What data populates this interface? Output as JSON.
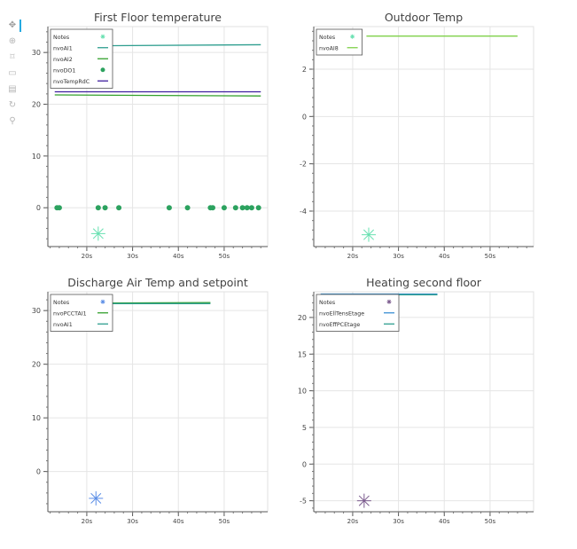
{
  "toolbar": {
    "tools": [
      {
        "name": "pan-tool-icon",
        "glyph": "✥"
      },
      {
        "name": "box-zoom-tool-icon",
        "glyph": "⊕"
      },
      {
        "name": "wheel-zoom-tool-icon",
        "glyph": "⌑"
      },
      {
        "name": "box-select-tool-icon",
        "glyph": "▭"
      },
      {
        "name": "save-tool-icon",
        "glyph": "▤"
      },
      {
        "name": "reset-tool-icon",
        "glyph": "↻"
      },
      {
        "name": "hover-tool-icon",
        "glyph": "⚲"
      }
    ]
  },
  "chart_data": [
    {
      "type": "line",
      "title": "First Floor temperature",
      "xlabel": "",
      "ylabel": "",
      "xlim": [
        11.5,
        59.5
      ],
      "ylim": [
        -7.5,
        35
      ],
      "xticks": [
        20,
        30,
        40,
        50
      ],
      "xtick_suffix": "s",
      "yticks": [
        0,
        10,
        20,
        30
      ],
      "grid": true,
      "legend_position": "top-left",
      "series": [
        {
          "name": "Notes",
          "kind": "star",
          "color": "#66e0b0",
          "points": [
            [
              22.5,
              -5
            ]
          ]
        },
        {
          "name": "nvoAI1",
          "kind": "line",
          "color": "#2e9e8f",
          "points": [
            [
              23,
              31.3
            ],
            [
              58,
              31.5
            ]
          ]
        },
        {
          "name": "nvoAI2",
          "kind": "line",
          "color": "#33a02c",
          "points": [
            [
              13,
              21.8
            ],
            [
              58,
              21.6
            ]
          ]
        },
        {
          "name": "nvoDO1",
          "kind": "scatter",
          "color": "#2ca25f",
          "points": [
            [
              13.5,
              0
            ],
            [
              14,
              0
            ],
            [
              22.5,
              0
            ],
            [
              24,
              0
            ],
            [
              27,
              0
            ],
            [
              38,
              0
            ],
            [
              42,
              0
            ],
            [
              47,
              0
            ],
            [
              47.5,
              0
            ],
            [
              50,
              0
            ],
            [
              52.5,
              0
            ],
            [
              54,
              0
            ],
            [
              55,
              0
            ],
            [
              56,
              0
            ],
            [
              57.5,
              0
            ]
          ]
        },
        {
          "name": "nvoTempRdC",
          "kind": "line",
          "color": "#3f1f9e",
          "points": [
            [
              13,
              22.4
            ],
            [
              58,
              22.4
            ]
          ]
        }
      ]
    },
    {
      "type": "line",
      "title": "Outdoor Temp",
      "xlabel": "",
      "ylabel": "",
      "xlim": [
        11.5,
        59.5
      ],
      "ylim": [
        -5.5,
        3.8
      ],
      "xticks": [
        20,
        30,
        40,
        50
      ],
      "xtick_suffix": "s",
      "yticks": [
        -4,
        -2,
        0,
        2
      ],
      "grid": true,
      "legend_position": "top-left",
      "series": [
        {
          "name": "Notes",
          "kind": "star",
          "color": "#66e0b0",
          "points": [
            [
              23.5,
              -5
            ]
          ]
        },
        {
          "name": "nvoAI8",
          "kind": "line",
          "color": "#7fd14a",
          "points": [
            [
              23,
              3.4
            ],
            [
              56,
              3.4
            ]
          ]
        }
      ]
    },
    {
      "type": "line",
      "title": "Discharge Air Temp and setpoint",
      "xlabel": "",
      "ylabel": "",
      "xlim": [
        11.5,
        59.5
      ],
      "ylim": [
        -7.5,
        33.5
      ],
      "xticks": [
        20,
        30,
        40,
        50
      ],
      "xtick_suffix": "s",
      "yticks": [
        0,
        10,
        20,
        30
      ],
      "grid": true,
      "legend_position": "top-left",
      "series": [
        {
          "name": "Notes",
          "kind": "star",
          "color": "#5b8ee6",
          "points": [
            [
              22,
              -5
            ]
          ]
        },
        {
          "name": "nvoPCCTAI1",
          "kind": "line",
          "color": "#33a02c",
          "points": [
            [
              22,
              31.4
            ],
            [
              47,
              31.5
            ]
          ]
        },
        {
          "name": "nvoAI1",
          "kind": "line",
          "color": "#2e9e8f",
          "points": [
            [
              22,
              31.3
            ],
            [
              47,
              31.3
            ]
          ]
        }
      ]
    },
    {
      "type": "line",
      "title": "Heating second floor",
      "xlabel": "",
      "ylabel": "",
      "xlim": [
        11.5,
        59.5
      ],
      "ylim": [
        -6.5,
        23.5
      ],
      "xticks": [
        20,
        30,
        40,
        50
      ],
      "xtick_suffix": "s",
      "yticks": [
        -5,
        0,
        5,
        10,
        15,
        20
      ],
      "grid": true,
      "legend_position": "top-left",
      "series": [
        {
          "name": "Notes",
          "kind": "star",
          "color": "#7b5b8e",
          "points": [
            [
              22.5,
              -5
            ]
          ]
        },
        {
          "name": "nvoEllTensEtage",
          "kind": "line",
          "color": "#3b8fd4",
          "points": [
            [
              13,
              23.2
            ],
            [
              38.5,
              23.2
            ]
          ]
        },
        {
          "name": "nvoEffPCEtage",
          "kind": "line",
          "color": "#2e9e8f",
          "points": [
            [
              13,
              23.1
            ],
            [
              38.5,
              23.1
            ]
          ]
        }
      ]
    }
  ]
}
